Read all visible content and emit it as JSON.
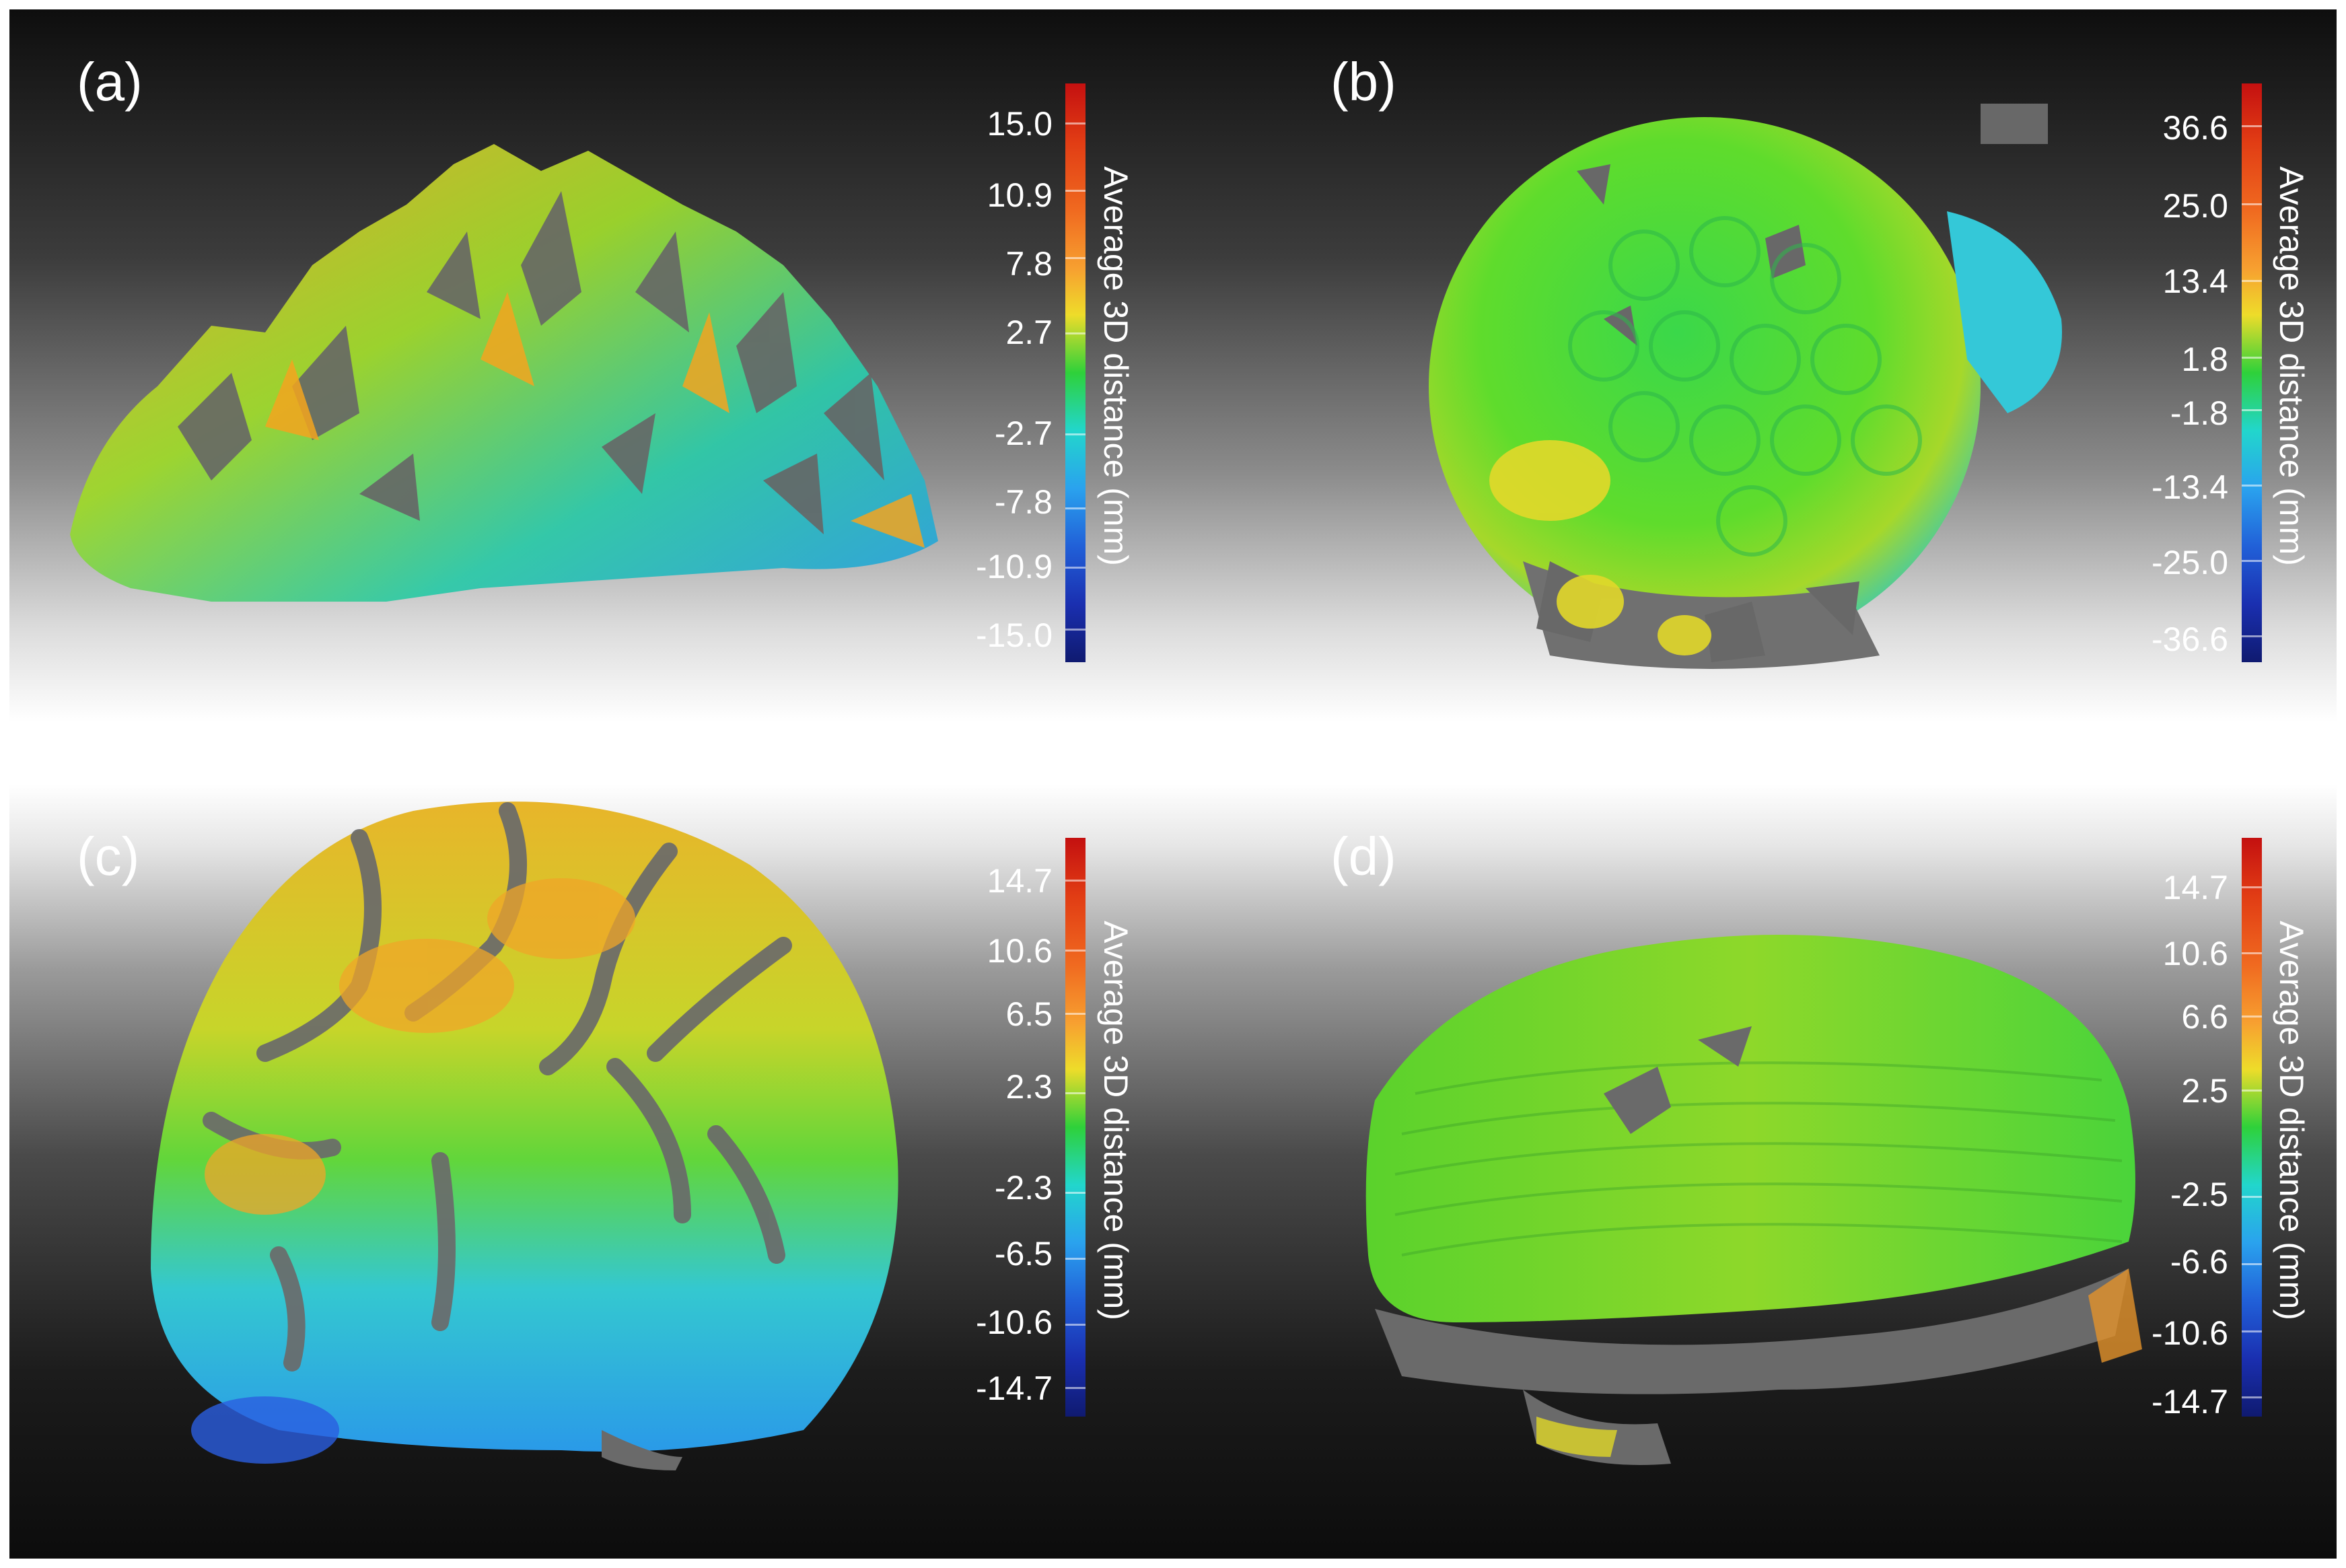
{
  "panels": [
    {
      "label": "(a)",
      "scale_title": "Average 3D distance (mm)",
      "ticks": [
        "15.0",
        "10.9",
        "7.8",
        "2.7",
        "-2.7",
        "-7.8",
        "-10.9",
        "-15.0"
      ]
    },
    {
      "label": "(b)",
      "scale_title": "Average 3D distance (mm)",
      "ticks": [
        "36.6",
        "25.0",
        "13.4",
        "1.8",
        "-1.8",
        "-13.4",
        "-25.0",
        "-36.6"
      ]
    },
    {
      "label": "(c)",
      "scale_title": "Average 3D distance (mm)",
      "ticks": [
        "14.7",
        "10.6",
        "6.5",
        "2.3",
        "-2.3",
        "-6.5",
        "-10.6",
        "-14.7"
      ]
    },
    {
      "label": "(d)",
      "scale_title": "Average 3D distance (mm)",
      "ticks": [
        "14.7",
        "10.6",
        "6.6",
        "2.5",
        "-2.5",
        "-6.6",
        "-10.6",
        "-14.7"
      ]
    }
  ]
}
